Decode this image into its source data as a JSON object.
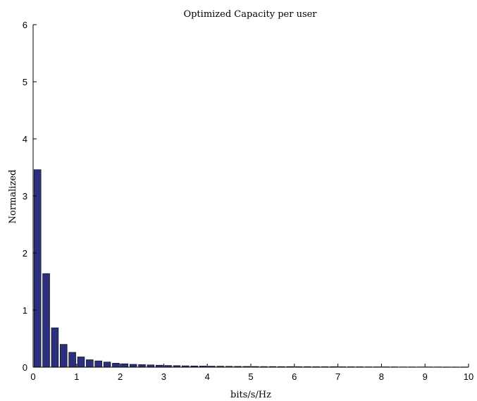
{
  "chart_data": {
    "type": "bar",
    "title": "Optimized Capacity per user",
    "xlabel": "bits/s/Hz",
    "ylabel": "Normalized",
    "xlim": [
      0,
      10
    ],
    "ylim": [
      0,
      6
    ],
    "xticks": [
      "0",
      "1",
      "2",
      "3",
      "4",
      "5",
      "6",
      "7",
      "8",
      "9",
      "10"
    ],
    "yticks": [
      "0",
      "1",
      "2",
      "3",
      "4",
      "5",
      "6"
    ],
    "bar_width": 0.16,
    "x": [
      0.1,
      0.3,
      0.5,
      0.7,
      0.9,
      1.1,
      1.3,
      1.5,
      1.7,
      1.9,
      2.1,
      2.3,
      2.5,
      2.7,
      2.9,
      3.1,
      3.3,
      3.5,
      3.7,
      3.9,
      4.1,
      4.3,
      4.5,
      4.7,
      4.9,
      5.1,
      5.3,
      5.5,
      5.7,
      5.9,
      6.1,
      6.3,
      6.5,
      6.7,
      6.9,
      7.1,
      7.3,
      7.5,
      7.7,
      7.9,
      8.1,
      8.3,
      8.5,
      8.7,
      8.9,
      9.1,
      9.3,
      9.5,
      9.7,
      9.9
    ],
    "values": [
      3.46,
      1.64,
      0.69,
      0.4,
      0.26,
      0.18,
      0.13,
      0.11,
      0.09,
      0.07,
      0.06,
      0.05,
      0.045,
      0.04,
      0.035,
      0.03,
      0.027,
      0.024,
      0.022,
      0.02,
      0.018,
      0.017,
      0.015,
      0.014,
      0.013,
      0.012,
      0.011,
      0.011,
      0.01,
      0.01,
      0.009,
      0.009,
      0.008,
      0.008,
      0.008,
      0.007,
      0.007,
      0.007,
      0.006,
      0.006,
      0.006,
      0.006,
      0.005,
      0.005,
      0.005,
      0.005,
      0.005,
      0.004,
      0.004,
      0.004
    ],
    "bar_color": "#2b2f7d",
    "bar_edge_color": "#000000",
    "grid": false,
    "axes_color": "#000000"
  }
}
